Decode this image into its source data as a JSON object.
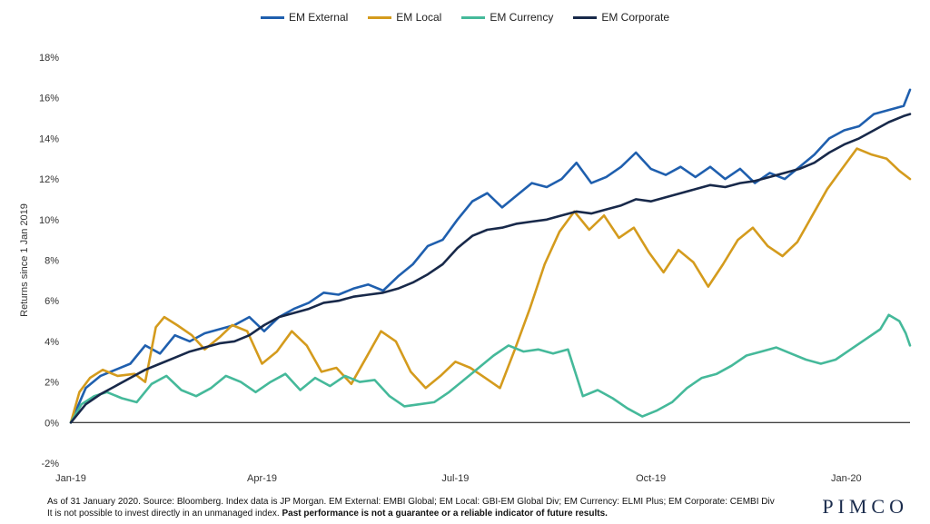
{
  "colors": {
    "em_external": "#1f5fae",
    "em_local": "#d49b1d",
    "em_currency": "#45b99a",
    "em_corporate": "#18294a"
  },
  "footnote": {
    "line1": "As of 31 January 2020. Source: Bloomberg. Index data is JP Morgan. EM External: EMBI Global; EM Local: GBI-EM Global Div; EM Currency: ELMI Plus; EM Corporate: CEMBI Div",
    "line2_plain": "It is not possible to invest directly in an unmanaged index. ",
    "line2_bold": "Past performance is not a guarantee or a reliable indicator of future results."
  },
  "logo": "PIMCO",
  "chart_data": {
    "type": "line",
    "ylabel": "Returns since 1 Jan 2019",
    "xlabel": "",
    "ylim": [
      -2,
      18
    ],
    "yticks": [
      -2,
      0,
      2,
      4,
      6,
      8,
      10,
      12,
      14,
      16,
      18
    ],
    "ytick_labels": [
      "-2%",
      "0%",
      "2%",
      "4%",
      "6%",
      "8%",
      "10%",
      "12%",
      "14%",
      "16%",
      "18%"
    ],
    "xlim": [
      "2019-01-01",
      "2020-01-31"
    ],
    "xticks": [
      "2019-01-01",
      "2019-04-01",
      "2019-07-01",
      "2019-10-01",
      "2020-01-01"
    ],
    "xtick_labels": [
      "Jan-19",
      "Apr-19",
      "Jul-19",
      "Oct-19",
      "Jan-20"
    ],
    "grid": false,
    "legend_position": "top-center",
    "series": [
      {
        "name": "EM External",
        "color_key": "em_external",
        "points": [
          [
            "2019-01-01",
            0.0
          ],
          [
            "2019-01-08",
            1.7
          ],
          [
            "2019-01-15",
            2.3
          ],
          [
            "2019-01-22",
            2.6
          ],
          [
            "2019-01-29",
            2.9
          ],
          [
            "2019-02-05",
            3.8
          ],
          [
            "2019-02-12",
            3.4
          ],
          [
            "2019-02-19",
            4.3
          ],
          [
            "2019-02-26",
            4.0
          ],
          [
            "2019-03-05",
            4.4
          ],
          [
            "2019-03-12",
            4.6
          ],
          [
            "2019-03-19",
            4.8
          ],
          [
            "2019-03-26",
            5.2
          ],
          [
            "2019-04-02",
            4.5
          ],
          [
            "2019-04-09",
            5.2
          ],
          [
            "2019-04-16",
            5.6
          ],
          [
            "2019-04-23",
            5.9
          ],
          [
            "2019-04-30",
            6.4
          ],
          [
            "2019-05-07",
            6.3
          ],
          [
            "2019-05-14",
            6.6
          ],
          [
            "2019-05-21",
            6.8
          ],
          [
            "2019-05-28",
            6.5
          ],
          [
            "2019-06-04",
            7.2
          ],
          [
            "2019-06-11",
            7.8
          ],
          [
            "2019-06-18",
            8.7
          ],
          [
            "2019-06-25",
            9.0
          ],
          [
            "2019-07-02",
            10.0
          ],
          [
            "2019-07-09",
            10.9
          ],
          [
            "2019-07-16",
            11.3
          ],
          [
            "2019-07-23",
            10.6
          ],
          [
            "2019-07-30",
            11.2
          ],
          [
            "2019-08-06",
            11.8
          ],
          [
            "2019-08-13",
            11.6
          ],
          [
            "2019-08-20",
            12.0
          ],
          [
            "2019-08-27",
            12.8
          ],
          [
            "2019-09-03",
            11.8
          ],
          [
            "2019-09-10",
            12.1
          ],
          [
            "2019-09-17",
            12.6
          ],
          [
            "2019-09-24",
            13.3
          ],
          [
            "2019-10-01",
            12.5
          ],
          [
            "2019-10-08",
            12.2
          ],
          [
            "2019-10-15",
            12.6
          ],
          [
            "2019-10-22",
            12.1
          ],
          [
            "2019-10-29",
            12.6
          ],
          [
            "2019-11-05",
            12.0
          ],
          [
            "2019-11-12",
            12.5
          ],
          [
            "2019-11-19",
            11.8
          ],
          [
            "2019-11-26",
            12.3
          ],
          [
            "2019-12-03",
            12.0
          ],
          [
            "2019-12-10",
            12.6
          ],
          [
            "2019-12-17",
            13.2
          ],
          [
            "2019-12-24",
            14.0
          ],
          [
            "2019-12-31",
            14.4
          ],
          [
            "2020-01-07",
            14.6
          ],
          [
            "2020-01-14",
            15.2
          ],
          [
            "2020-01-21",
            15.4
          ],
          [
            "2020-01-28",
            15.6
          ],
          [
            "2020-01-31",
            16.4
          ]
        ]
      },
      {
        "name": "EM Local",
        "color_key": "em_local",
        "points": [
          [
            "2019-01-01",
            0.0
          ],
          [
            "2019-01-05",
            1.5
          ],
          [
            "2019-01-10",
            2.2
          ],
          [
            "2019-01-16",
            2.6
          ],
          [
            "2019-01-23",
            2.3
          ],
          [
            "2019-01-31",
            2.4
          ],
          [
            "2019-02-05",
            2.0
          ],
          [
            "2019-02-10",
            4.7
          ],
          [
            "2019-02-14",
            5.2
          ],
          [
            "2019-02-20",
            4.8
          ],
          [
            "2019-02-27",
            4.3
          ],
          [
            "2019-03-05",
            3.6
          ],
          [
            "2019-03-12",
            4.2
          ],
          [
            "2019-03-18",
            4.8
          ],
          [
            "2019-03-25",
            4.5
          ],
          [
            "2019-04-01",
            2.9
          ],
          [
            "2019-04-08",
            3.5
          ],
          [
            "2019-04-15",
            4.5
          ],
          [
            "2019-04-22",
            3.8
          ],
          [
            "2019-04-29",
            2.5
          ],
          [
            "2019-05-06",
            2.7
          ],
          [
            "2019-05-13",
            1.9
          ],
          [
            "2019-05-20",
            3.2
          ],
          [
            "2019-05-27",
            4.5
          ],
          [
            "2019-06-03",
            4.0
          ],
          [
            "2019-06-10",
            2.5
          ],
          [
            "2019-06-17",
            1.7
          ],
          [
            "2019-06-24",
            2.3
          ],
          [
            "2019-07-01",
            3.0
          ],
          [
            "2019-07-08",
            2.7
          ],
          [
            "2019-07-15",
            2.2
          ],
          [
            "2019-07-22",
            1.7
          ],
          [
            "2019-07-29",
            3.6
          ],
          [
            "2019-08-05",
            5.6
          ],
          [
            "2019-08-12",
            7.8
          ],
          [
            "2019-08-19",
            9.4
          ],
          [
            "2019-08-26",
            10.4
          ],
          [
            "2019-09-02",
            9.5
          ],
          [
            "2019-09-09",
            10.2
          ],
          [
            "2019-09-16",
            9.1
          ],
          [
            "2019-09-23",
            9.6
          ],
          [
            "2019-09-30",
            8.4
          ],
          [
            "2019-10-07",
            7.4
          ],
          [
            "2019-10-14",
            8.5
          ],
          [
            "2019-10-21",
            7.9
          ],
          [
            "2019-10-28",
            6.7
          ],
          [
            "2019-11-04",
            7.8
          ],
          [
            "2019-11-11",
            9.0
          ],
          [
            "2019-11-18",
            9.6
          ],
          [
            "2019-11-25",
            8.7
          ],
          [
            "2019-12-02",
            8.2
          ],
          [
            "2019-12-09",
            8.9
          ],
          [
            "2019-12-16",
            10.2
          ],
          [
            "2019-12-23",
            11.5
          ],
          [
            "2019-12-30",
            12.5
          ],
          [
            "2020-01-06",
            13.5
          ],
          [
            "2020-01-13",
            13.2
          ],
          [
            "2020-01-20",
            13.0
          ],
          [
            "2020-01-26",
            12.4
          ],
          [
            "2020-01-31",
            12.0
          ]
        ]
      },
      {
        "name": "EM Currency",
        "color_key": "em_currency",
        "points": [
          [
            "2019-01-01",
            0.0
          ],
          [
            "2019-01-06",
            0.9
          ],
          [
            "2019-01-12",
            1.3
          ],
          [
            "2019-01-18",
            1.5
          ],
          [
            "2019-01-25",
            1.2
          ],
          [
            "2019-02-01",
            1.0
          ],
          [
            "2019-02-08",
            1.9
          ],
          [
            "2019-02-15",
            2.3
          ],
          [
            "2019-02-22",
            1.6
          ],
          [
            "2019-03-01",
            1.3
          ],
          [
            "2019-03-08",
            1.7
          ],
          [
            "2019-03-15",
            2.3
          ],
          [
            "2019-03-22",
            2.0
          ],
          [
            "2019-03-29",
            1.5
          ],
          [
            "2019-04-05",
            2.0
          ],
          [
            "2019-04-12",
            2.4
          ],
          [
            "2019-04-19",
            1.6
          ],
          [
            "2019-04-26",
            2.2
          ],
          [
            "2019-05-03",
            1.8
          ],
          [
            "2019-05-10",
            2.3
          ],
          [
            "2019-05-17",
            2.0
          ],
          [
            "2019-05-24",
            2.1
          ],
          [
            "2019-05-31",
            1.3
          ],
          [
            "2019-06-07",
            0.8
          ],
          [
            "2019-06-14",
            0.9
          ],
          [
            "2019-06-21",
            1.0
          ],
          [
            "2019-06-28",
            1.5
          ],
          [
            "2019-07-05",
            2.1
          ],
          [
            "2019-07-12",
            2.7
          ],
          [
            "2019-07-19",
            3.3
          ],
          [
            "2019-07-26",
            3.8
          ],
          [
            "2019-08-02",
            3.5
          ],
          [
            "2019-08-09",
            3.6
          ],
          [
            "2019-08-16",
            3.4
          ],
          [
            "2019-08-23",
            3.6
          ],
          [
            "2019-08-30",
            1.3
          ],
          [
            "2019-09-06",
            1.6
          ],
          [
            "2019-09-13",
            1.2
          ],
          [
            "2019-09-20",
            0.7
          ],
          [
            "2019-09-27",
            0.3
          ],
          [
            "2019-10-04",
            0.6
          ],
          [
            "2019-10-11",
            1.0
          ],
          [
            "2019-10-18",
            1.7
          ],
          [
            "2019-10-25",
            2.2
          ],
          [
            "2019-11-01",
            2.4
          ],
          [
            "2019-11-08",
            2.8
          ],
          [
            "2019-11-15",
            3.3
          ],
          [
            "2019-11-22",
            3.5
          ],
          [
            "2019-11-29",
            3.7
          ],
          [
            "2019-12-06",
            3.4
          ],
          [
            "2019-12-13",
            3.1
          ],
          [
            "2019-12-20",
            2.9
          ],
          [
            "2019-12-27",
            3.1
          ],
          [
            "2020-01-03",
            3.6
          ],
          [
            "2020-01-10",
            4.1
          ],
          [
            "2020-01-17",
            4.6
          ],
          [
            "2020-01-21",
            5.3
          ],
          [
            "2020-01-26",
            5.0
          ],
          [
            "2020-01-29",
            4.4
          ],
          [
            "2020-01-31",
            3.8
          ]
        ]
      },
      {
        "name": "EM Corporate",
        "color_key": "em_corporate",
        "points": [
          [
            "2019-01-01",
            0.0
          ],
          [
            "2019-01-08",
            0.9
          ],
          [
            "2019-01-15",
            1.4
          ],
          [
            "2019-01-22",
            1.8
          ],
          [
            "2019-01-29",
            2.2
          ],
          [
            "2019-02-05",
            2.6
          ],
          [
            "2019-02-12",
            2.9
          ],
          [
            "2019-02-19",
            3.2
          ],
          [
            "2019-02-26",
            3.5
          ],
          [
            "2019-03-05",
            3.7
          ],
          [
            "2019-03-12",
            3.9
          ],
          [
            "2019-03-19",
            4.0
          ],
          [
            "2019-03-26",
            4.3
          ],
          [
            "2019-04-02",
            4.8
          ],
          [
            "2019-04-09",
            5.2
          ],
          [
            "2019-04-16",
            5.4
          ],
          [
            "2019-04-23",
            5.6
          ],
          [
            "2019-04-30",
            5.9
          ],
          [
            "2019-05-07",
            6.0
          ],
          [
            "2019-05-14",
            6.2
          ],
          [
            "2019-05-21",
            6.3
          ],
          [
            "2019-05-28",
            6.4
          ],
          [
            "2019-06-04",
            6.6
          ],
          [
            "2019-06-11",
            6.9
          ],
          [
            "2019-06-18",
            7.3
          ],
          [
            "2019-06-25",
            7.8
          ],
          [
            "2019-07-02",
            8.6
          ],
          [
            "2019-07-09",
            9.2
          ],
          [
            "2019-07-16",
            9.5
          ],
          [
            "2019-07-23",
            9.6
          ],
          [
            "2019-07-30",
            9.8
          ],
          [
            "2019-08-06",
            9.9
          ],
          [
            "2019-08-13",
            10.0
          ],
          [
            "2019-08-20",
            10.2
          ],
          [
            "2019-08-27",
            10.4
          ],
          [
            "2019-09-03",
            10.3
          ],
          [
            "2019-09-10",
            10.5
          ],
          [
            "2019-09-17",
            10.7
          ],
          [
            "2019-09-24",
            11.0
          ],
          [
            "2019-10-01",
            10.9
          ],
          [
            "2019-10-08",
            11.1
          ],
          [
            "2019-10-15",
            11.3
          ],
          [
            "2019-10-22",
            11.5
          ],
          [
            "2019-10-29",
            11.7
          ],
          [
            "2019-11-05",
            11.6
          ],
          [
            "2019-11-12",
            11.8
          ],
          [
            "2019-11-19",
            11.9
          ],
          [
            "2019-11-26",
            12.1
          ],
          [
            "2019-12-03",
            12.3
          ],
          [
            "2019-12-10",
            12.5
          ],
          [
            "2019-12-17",
            12.8
          ],
          [
            "2019-12-24",
            13.3
          ],
          [
            "2019-12-31",
            13.7
          ],
          [
            "2020-01-07",
            14.0
          ],
          [
            "2020-01-14",
            14.4
          ],
          [
            "2020-01-21",
            14.8
          ],
          [
            "2020-01-28",
            15.1
          ],
          [
            "2020-01-31",
            15.2
          ]
        ]
      }
    ]
  }
}
